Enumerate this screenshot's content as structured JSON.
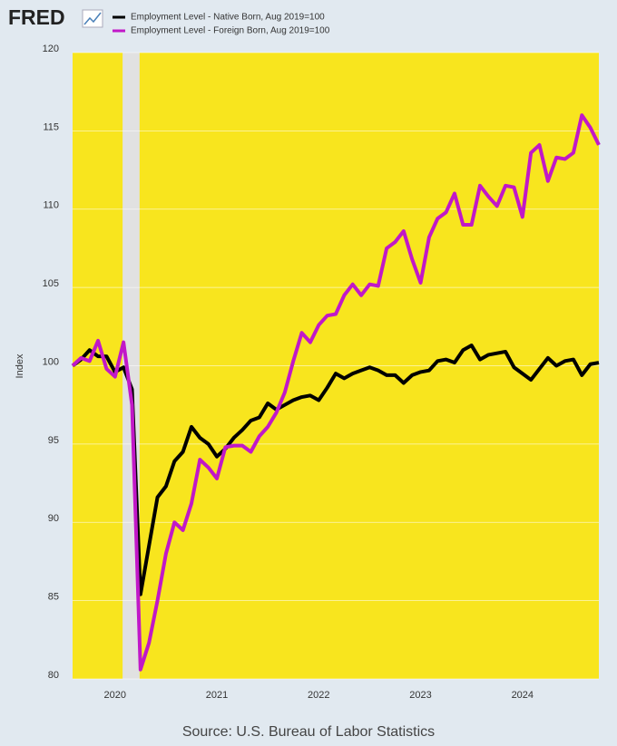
{
  "logo": "FRED",
  "chart_data": {
    "type": "line",
    "categories": [
      null,
      null,
      null,
      null,
      null,
      "2020",
      null,
      null,
      null,
      null,
      null,
      null,
      null,
      null,
      null,
      null,
      null,
      "2021",
      null,
      null,
      null,
      null,
      null,
      null,
      null,
      null,
      null,
      null,
      null,
      "2022",
      null,
      null,
      null,
      null,
      null,
      null,
      null,
      null,
      null,
      null,
      null,
      "2023",
      null,
      null,
      null,
      null,
      null,
      null,
      null,
      null,
      null,
      null,
      null,
      "2024",
      null,
      null,
      null,
      null,
      null,
      null,
      null,
      null,
      null
    ],
    "series": [
      {
        "name": "Employment Level - Native Born, Aug 2019=100",
        "color": "#000000",
        "values": [
          100,
          100.4,
          101,
          100.6,
          100.6,
          99.6,
          99.9,
          98.5,
          85.4,
          88.5,
          91.6,
          92.3,
          93.9,
          94.5,
          96.1,
          95.4,
          95.0,
          94.2,
          94.7,
          95.4,
          95.9,
          96.5,
          96.7,
          97.6,
          97.2,
          97.5,
          97.8,
          98.0,
          98.1,
          97.8,
          98.6,
          99.5,
          99.2,
          99.5,
          99.7,
          99.9,
          99.7,
          99.4,
          99.4,
          98.9,
          99.4,
          99.6,
          99.7,
          100.3,
          100.4,
          100.2,
          101.0,
          101.3,
          100.4,
          100.7,
          100.8,
          100.9,
          99.9,
          99.5,
          99.1,
          99.8,
          100.5,
          100.0,
          100.3,
          100.4,
          99.4,
          100.1,
          100.2
        ]
      },
      {
        "name": "Employment Level - Foreign Born, Aug 2019=100",
        "color": "#c118c8",
        "values": [
          100,
          100.5,
          100.3,
          101.6,
          99.8,
          99.3,
          101.5,
          97.5,
          80.6,
          82.3,
          85,
          88,
          90,
          89.5,
          91.2,
          94,
          93.5,
          92.8,
          94.8,
          94.9,
          94.9,
          94.5,
          95.5,
          96.1,
          97,
          98.3,
          100.3,
          102.1,
          101.5,
          102.6,
          103.2,
          103.3,
          104.5,
          105.2,
          104.5,
          105.2,
          105.1,
          107.5,
          107.9,
          108.6,
          106.8,
          105.3,
          108.2,
          109.4,
          109.8,
          111,
          109,
          109,
          111.5,
          110.8,
          110.2,
          111.5,
          111.4,
          109.5,
          113.6,
          114.1,
          111.8,
          113.3,
          113.2,
          113.6,
          116,
          115.2,
          114.1
        ]
      }
    ],
    "recession_shading": [
      6,
      8
    ],
    "y_label": "Index",
    "ylim": [
      80,
      120
    ],
    "yticks": [
      80,
      85,
      90,
      95,
      100,
      105,
      110,
      115,
      120
    ],
    "grid": true,
    "background": "#f8e51e",
    "source": "Source: U.S. Bureau of Labor Statistics"
  }
}
